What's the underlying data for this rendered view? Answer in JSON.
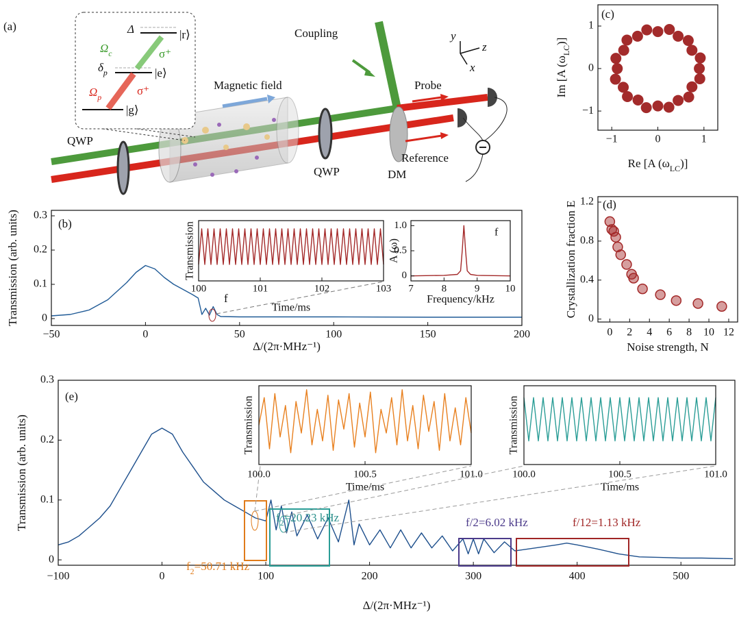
{
  "diagram": {
    "panel_label": "(a)",
    "delta": "Δ",
    "state_r": "|r⟩",
    "omega_c": {
      "text": "Ω",
      "sub": "c"
    },
    "sigma_c": "σ⁺",
    "delta_p": {
      "text": "δ",
      "sub": "p"
    },
    "state_e": "|e⟩",
    "omega_p": {
      "text": "Ω",
      "sub": "p"
    },
    "sigma_p": "σ⁺",
    "state_g": "|g⟩",
    "magnetic_field": "Magnetic field",
    "coupling": "Coupling",
    "probe": "Probe",
    "reference": "Reference",
    "qwp_left": "QWP",
    "qwp_right": "QWP",
    "dm": "DM",
    "axis_y": "y",
    "axis_z": "z",
    "axis_x": "x"
  },
  "chart_data": [
    {
      "type": "line",
      "panel_label": "(b)",
      "xlabel": "Δ/(2π·MHz⁻¹)",
      "ylabel": "Transmission (arb. units)",
      "color": "#1f5a96",
      "xlim": [
        -50,
        200
      ],
      "ylim": [
        -0.02,
        0.316
      ],
      "xticks": [
        {
          "value": -50,
          "label": "−50"
        },
        0,
        50,
        100,
        150,
        200
      ],
      "yticks": [
        0,
        0.1,
        0.2,
        0.3
      ],
      "x": [
        -50,
        -40,
        -30,
        -20,
        -10,
        -5,
        0,
        5,
        10,
        15,
        20,
        25,
        28,
        30,
        32,
        34,
        36,
        38,
        40,
        50,
        100,
        150,
        200
      ],
      "values": [
        0.008,
        0.012,
        0.025,
        0.055,
        0.105,
        0.135,
        0.155,
        0.145,
        0.12,
        0.1,
        0.085,
        0.07,
        0.06,
        0.012,
        0.03,
        0.01,
        0.035,
        0.012,
        0.006,
        0.005,
        0.005,
        0.004,
        0.004
      ],
      "annotations": [
        {
          "label": "f",
          "color": "#111"
        }
      ]
    },
    {
      "type": "line",
      "xlabel": "Time/ms",
      "ylabel": "Transmission",
      "color": "#a32828",
      "xlim": [
        100,
        103
      ],
      "ylim": [
        0,
        1.1
      ],
      "xticks": [
        100,
        101,
        102,
        103
      ],
      "yticks": [],
      "x": [
        100,
        100.05,
        100.1,
        100.15,
        100.2,
        100.25,
        100.3,
        100.35,
        100.4,
        100.45,
        100.5,
        100.55,
        100.6,
        100.65,
        100.7,
        100.75,
        100.8,
        100.85,
        100.9,
        100.95,
        101,
        101.05,
        101.1,
        101.15,
        101.2,
        101.25,
        101.3,
        101.35,
        101.4,
        101.45,
        101.5,
        101.55,
        101.6,
        101.65,
        101.7,
        101.75,
        101.8,
        101.85,
        101.9,
        101.95,
        102,
        102.05,
        102.1,
        102.15,
        102.2,
        102.25,
        102.3,
        102.35,
        102.4,
        102.45,
        102.5,
        102.55,
        102.6,
        102.65,
        102.7,
        102.75,
        102.8,
        102.85,
        102.9,
        102.95,
        103
      ],
      "values": [
        0.3,
        0.95,
        0.3,
        0.95,
        0.3,
        0.95,
        0.3,
        0.95,
        0.3,
        0.95,
        0.3,
        0.95,
        0.3,
        0.95,
        0.3,
        0.95,
        0.3,
        0.95,
        0.3,
        0.95,
        0.3,
        0.95,
        0.3,
        0.95,
        0.3,
        0.95,
        0.3,
        0.95,
        0.3,
        0.95,
        0.3,
        0.95,
        0.3,
        0.95,
        0.3,
        0.95,
        0.3,
        0.95,
        0.3,
        0.95,
        0.3,
        0.95,
        0.3,
        0.95,
        0.3,
        0.95,
        0.3,
        0.95,
        0.3,
        0.95,
        0.3,
        0.95,
        0.3,
        0.95,
        0.3,
        0.95,
        0.3,
        0.95,
        0.3,
        0.95,
        0.3
      ]
    },
    {
      "type": "line",
      "xlabel": "Frequency/kHz",
      "ylabel": "A (ω)",
      "color": "#a32828",
      "xlim": [
        7,
        10
      ],
      "ylim": [
        -0.1,
        1.1
      ],
      "xticks": [
        7,
        8,
        9,
        10
      ],
      "yticks": [
        0,
        0.5,
        {
          "value": 1,
          "label": "1.0"
        }
      ],
      "x": [
        7,
        8,
        8.4,
        8.5,
        8.55,
        8.6,
        8.65,
        8.7,
        8.8,
        9,
        10
      ],
      "values": [
        0,
        0.01,
        0.03,
        0.1,
        0.5,
        1,
        0.5,
        0.1,
        0.03,
        0.01,
        0
      ],
      "annotations": [
        {
          "label": "f",
          "color": "#111"
        }
      ]
    },
    {
      "type": "scatter",
      "panel_label": "(c)",
      "xlabel": {
        "text": "Re [A (ω",
        "sub": "LC",
        "tail": ")]"
      },
      "ylabel": {
        "text": "Im [A (ω",
        "sub": "LC",
        "tail": ")]"
      },
      "color": "#a32b2b",
      "xlim": [
        -1.3,
        1.3
      ],
      "ylim": [
        -1.45,
        1.5
      ],
      "xticks": [
        {
          "value": -1,
          "label": "−1"
        },
        0,
        1
      ],
      "yticks": [
        {
          "value": -1,
          "label": "−1"
        },
        0,
        1
      ],
      "x": [
        0.9,
        0.92,
        0.74,
        0.66,
        0.44,
        0.25,
        0,
        -0.24,
        -0.44,
        -0.67,
        -0.74,
        -0.91,
        -0.88,
        -0.92,
        -0.75,
        -0.66,
        -0.43,
        -0.25,
        0,
        0.24,
        0.44,
        0.67,
        0.74,
        0.91
      ],
      "values": [
        0,
        0.25,
        0.43,
        0.66,
        0.76,
        0.92,
        0.87,
        0.91,
        0.76,
        0.67,
        0.43,
        0.24,
        0,
        -0.25,
        -0.44,
        -0.66,
        -0.74,
        -0.92,
        -0.88,
        -0.91,
        -0.75,
        -0.67,
        -0.43,
        -0.24
      ]
    },
    {
      "type": "scatter",
      "panel_label": "(d)",
      "xlabel": "Noise strength, N",
      "ylabel": "Crystallization fraction E",
      "color": "#a32828",
      "xlim": [
        -1.2,
        12.9
      ],
      "ylim": [
        -0.03,
        1.256
      ],
      "xticks": [
        0,
        2,
        4,
        6,
        8,
        10,
        12
      ],
      "yticks": [
        0,
        0.4,
        0.8,
        1.2
      ],
      "x": [
        0,
        0.2,
        0.4,
        0.6,
        0.8,
        1.1,
        1.7,
        2.2,
        2.4,
        3.3,
        5.1,
        6.7,
        8.9,
        11.3
      ],
      "values": [
        1.0,
        0.92,
        0.9,
        0.84,
        0.74,
        0.66,
        0.56,
        0.46,
        0.42,
        0.31,
        0.25,
        0.19,
        0.16,
        0.13
      ]
    },
    {
      "type": "line",
      "panel_label": "(e)",
      "xlabel": "Δ/(2π·MHz⁻¹)",
      "ylabel": "Transmission (arb. units)",
      "color": "#1d4f8c",
      "xlim": [
        -100,
        552
      ],
      "ylim": [
        -0.009,
        0.3
      ],
      "xticks": [
        {
          "value": -100,
          "label": "−100"
        },
        0,
        100,
        200,
        300,
        400,
        500
      ],
      "yticks": [
        0,
        0.1,
        0.2,
        0.3
      ],
      "x": [
        -100,
        -90,
        -80,
        -70,
        -60,
        -50,
        -40,
        -30,
        -20,
        -10,
        0,
        10,
        20,
        30,
        40,
        50,
        60,
        70,
        80,
        90,
        100,
        105,
        110,
        115,
        120,
        125,
        130,
        140,
        150,
        160,
        170,
        180,
        185,
        190,
        200,
        210,
        220,
        230,
        240,
        250,
        260,
        270,
        280,
        290,
        295,
        300,
        305,
        310,
        320,
        330,
        340,
        360,
        380,
        390,
        400,
        420,
        440,
        460,
        480,
        500,
        520,
        550
      ],
      "values": [
        0.025,
        0.03,
        0.04,
        0.055,
        0.07,
        0.09,
        0.12,
        0.15,
        0.18,
        0.21,
        0.22,
        0.21,
        0.18,
        0.155,
        0.13,
        0.115,
        0.1,
        0.09,
        0.08,
        0.07,
        0.065,
        0.1,
        0.05,
        0.09,
        0.045,
        0.08,
        0.04,
        0.075,
        0.035,
        0.07,
        0.03,
        0.1,
        0.025,
        0.06,
        0.025,
        0.05,
        0.02,
        0.05,
        0.02,
        0.045,
        0.02,
        0.04,
        0.015,
        0.035,
        0.01,
        0.035,
        0.01,
        0.035,
        0.012,
        0.03,
        0.015,
        0.02,
        0.025,
        0.028,
        0.025,
        0.018,
        0.01,
        0.005,
        0.004,
        0.003,
        0.003,
        0.002
      ],
      "annotations": [
        {
          "label": {
            "text": "f",
            "sub": "2",
            "tail": "=50.71 kHz"
          },
          "color": "#e07b1a"
        },
        {
          "label": {
            "text": "f",
            "sub": "2",
            "tail": "=20.23 kHz"
          },
          "color": "#2a8f8b"
        },
        {
          "label": "f/2=6.02 kHz",
          "color": "#4b3a8a"
        },
        {
          "label": "f/12=1.13 kHz",
          "color": "#a02525"
        }
      ]
    },
    {
      "type": "line",
      "xlabel": "Time/ms",
      "ylabel": "Transmission",
      "color": "#e8801f",
      "xlim": [
        100,
        101
      ],
      "ylim": [
        0,
        1
      ],
      "xticks": [
        {
          "value": 100,
          "label": "100.0"
        },
        100.5,
        {
          "value": 101,
          "label": "101.0"
        }
      ],
      "yticks": [],
      "x": [
        100,
        100.025,
        100.05,
        100.075,
        100.1,
        100.125,
        100.15,
        100.175,
        100.2,
        100.225,
        100.25,
        100.275,
        100.3,
        100.325,
        100.35,
        100.375,
        100.4,
        100.425,
        100.45,
        100.475,
        100.5,
        100.525,
        100.55,
        100.575,
        100.6,
        100.625,
        100.65,
        100.675,
        100.7,
        100.725,
        100.75,
        100.775,
        100.8,
        100.825,
        100.85,
        100.875,
        100.9,
        100.925,
        100.95,
        100.975,
        101
      ],
      "values": [
        0.5,
        0.85,
        0.2,
        0.9,
        0.35,
        0.75,
        0.15,
        0.8,
        0.4,
        0.95,
        0.25,
        0.7,
        0.3,
        0.88,
        0.18,
        0.82,
        0.45,
        0.9,
        0.22,
        0.78,
        0.35,
        0.92,
        0.15,
        0.7,
        0.4,
        0.85,
        0.25,
        0.95,
        0.3,
        0.75,
        0.2,
        0.88,
        0.42,
        0.8,
        0.18,
        0.9,
        0.3,
        0.72,
        0.25,
        0.85,
        0.4
      ]
    },
    {
      "type": "line",
      "xlabel": "Time/ms",
      "ylabel": "Transmission",
      "color": "#2a9d96",
      "xlim": [
        100,
        101
      ],
      "ylim": [
        0,
        1
      ],
      "xticks": [
        {
          "value": 100,
          "label": "100.0"
        },
        100.5,
        {
          "value": 101,
          "label": "101.0"
        }
      ],
      "yticks": [],
      "x": [
        100,
        100.025,
        100.05,
        100.075,
        100.1,
        100.125,
        100.15,
        100.175,
        100.2,
        100.225,
        100.25,
        100.275,
        100.3,
        100.325,
        100.35,
        100.375,
        100.4,
        100.425,
        100.45,
        100.475,
        100.5,
        100.525,
        100.55,
        100.575,
        100.6,
        100.625,
        100.65,
        100.675,
        100.7,
        100.725,
        100.75,
        100.775,
        100.8,
        100.825,
        100.85,
        100.875,
        100.9,
        100.925,
        100.95,
        100.975,
        101
      ],
      "values": [
        0.85,
        0.3,
        0.85,
        0.3,
        0.85,
        0.3,
        0.85,
        0.3,
        0.85,
        0.3,
        0.85,
        0.3,
        0.85,
        0.3,
        0.85,
        0.3,
        0.85,
        0.3,
        0.85,
        0.3,
        0.85,
        0.3,
        0.85,
        0.3,
        0.85,
        0.3,
        0.85,
        0.3,
        0.85,
        0.3,
        0.85,
        0.3,
        0.85,
        0.3,
        0.85,
        0.3,
        0.85,
        0.3,
        0.85,
        0.3,
        0.85
      ]
    }
  ]
}
